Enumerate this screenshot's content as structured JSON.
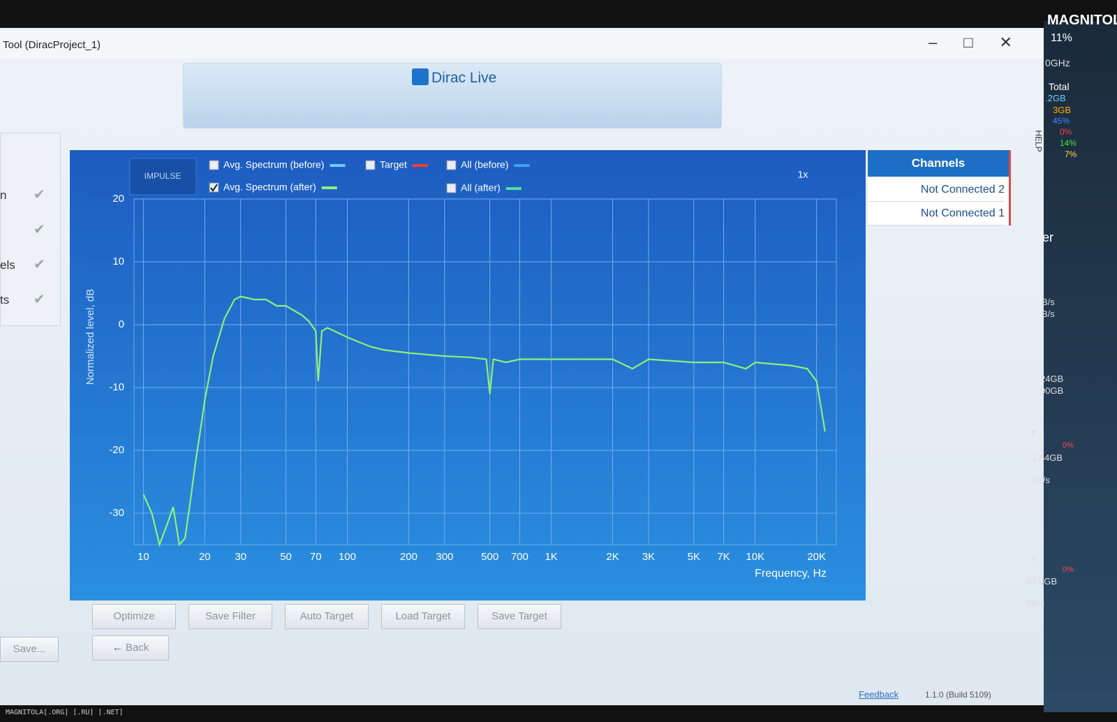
{
  "window": {
    "title": "Tool (DiracProject_1)",
    "logo": "Dirac Live",
    "help": "HELP",
    "version": "1.1.0 (Build 5109)",
    "feedback": "Feedback"
  },
  "sidebar": {
    "items": [
      "n",
      "",
      "els",
      "ts"
    ],
    "save": "Save..."
  },
  "controls": {
    "impulse": "IMPULSE",
    "zoom": "1x",
    "toggles": [
      {
        "label": "Avg. Spectrum (before)",
        "color": "#6fc8ff",
        "checked": false
      },
      {
        "label": "Target",
        "color": "#ff3b30",
        "checked": false
      },
      {
        "label": "All (before)",
        "color": "#4aa0f0",
        "checked": false
      },
      {
        "label": "All (after)",
        "color": "#4fe0a0",
        "checked": false
      }
    ]
  },
  "channels": {
    "title": "Channels",
    "items": [
      "Not Connected 2",
      "Not Connected 1"
    ]
  },
  "buttons": [
    "Optimize",
    "Save Filter",
    "Auto Target",
    "Load Target",
    "Save Target"
  ],
  "back": "Back",
  "gadgets": [
    "MAGNITOLA",
    "11%",
    "0GHz",
    "Total",
    ".2GB",
    "3GB",
    "45%",
    "0%",
    "14%",
    "7%",
    "er",
    "B/s",
    "B/s",
    "24GB",
    "90GB",
    "r",
    "0%",
    "1.64GB",
    "0B/s",
    "r",
    "0%",
    "07.0GB",
    "0B/s"
  ],
  "watermark": "MAGNITOLA[.ORG] [.RU] [.NET]",
  "chart_data": {
    "type": "line",
    "ylabel": "Normalized level, dB",
    "xlabel": "Frequency, Hz",
    "log_x": true,
    "grid": true,
    "xlim": [
      9,
      25000
    ],
    "ylim": [
      -35,
      20
    ],
    "xticks": [
      10,
      20,
      30,
      50,
      70,
      100,
      200,
      300,
      500,
      700,
      {
        "value": 1000,
        "label": "1K"
      },
      {
        "value": 2000,
        "label": "2K"
      },
      {
        "value": 3000,
        "label": "3K"
      },
      {
        "value": 5000,
        "label": "5K"
      },
      {
        "value": 7000,
        "label": "7K"
      },
      {
        "value": 10000,
        "label": "10K"
      },
      {
        "value": 20000,
        "label": "20K"
      }
    ],
    "yticks": [
      20,
      10,
      0,
      -10,
      -20,
      -30
    ],
    "x": [
      10,
      11,
      12,
      13,
      14,
      15,
      16,
      17,
      18,
      19,
      20,
      22,
      25,
      28,
      30,
      35,
      40,
      45,
      50,
      60,
      65,
      70,
      72,
      75,
      80,
      100,
      130,
      150,
      200,
      300,
      400,
      480,
      500,
      520,
      600,
      700,
      1000,
      1500,
      2000,
      2500,
      3000,
      5000,
      7000,
      9000,
      10000,
      15000,
      18000,
      20000,
      22000
    ],
    "series": [
      {
        "name": "Avg. Spectrum (after)",
        "color": "#8ef07a",
        "checked": true,
        "values": [
          -27,
          -30,
          -35,
          -32,
          -29,
          -35,
          -34,
          -28,
          -22,
          -17,
          -12,
          -5,
          1,
          4,
          4.5,
          4,
          4,
          3,
          3,
          1.5,
          0.5,
          -1,
          -9,
          -1,
          -0.5,
          -2,
          -3.5,
          -4,
          -4.5,
          -5,
          -5.2,
          -5.5,
          -11,
          -5.5,
          -6,
          -5.5,
          -5.5,
          -5.5,
          -5.5,
          -7,
          -5.5,
          -6,
          -6,
          -7,
          -6,
          -6.5,
          -7,
          -9,
          -17
        ]
      }
    ]
  }
}
